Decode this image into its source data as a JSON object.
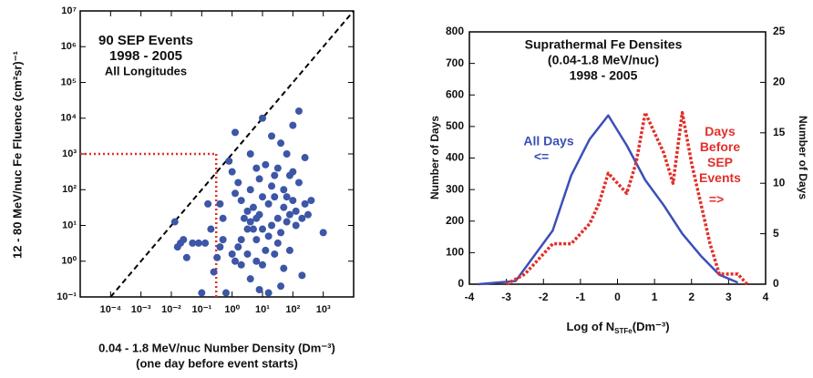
{
  "chart_data": [
    {
      "type": "scatter",
      "title": [
        "90 SEP Events",
        "1998 - 2005",
        "All Longitudes"
      ],
      "x_label": [
        "0.04 - 1.8 MeV/nuc Number Density (Dm⁻³)",
        "(one day before event starts)"
      ],
      "y_label": "12 - 80 MeV/nuc Fe Fluence (cm²sr)⁻¹",
      "xscale": "log",
      "yscale": "log",
      "xlim": [
        1e-05,
        10000
      ],
      "ylim": [
        0.1,
        10000000
      ],
      "xticks": [
        {
          "value": 0.0001,
          "label": "10⁻⁴"
        },
        {
          "value": 0.001,
          "label": "10⁻³"
        },
        {
          "value": 0.01,
          "label": "10⁻²"
        },
        {
          "value": 0.1,
          "label": "10⁻¹"
        },
        {
          "value": 1,
          "label": "10⁰"
        },
        {
          "value": 10,
          "label": "10¹"
        },
        {
          "value": 100,
          "label": "10²"
        },
        {
          "value": 1000,
          "label": "10³"
        }
      ],
      "yticks": [
        {
          "value": 0.1,
          "label": "10⁻¹"
        },
        {
          "value": 1,
          "label": "10⁰"
        },
        {
          "value": 10,
          "label": "10¹"
        },
        {
          "value": 100,
          "label": "10²"
        },
        {
          "value": 1000,
          "label": "10³"
        },
        {
          "value": 10000,
          "label": "10⁴"
        },
        {
          "value": 100000,
          "label": "10⁵"
        },
        {
          "value": 1000000,
          "label": "10⁶"
        },
        {
          "value": 10000000,
          "label": "10⁷"
        }
      ],
      "color": "#3d56a6",
      "x": [
        0.013,
        0.016,
        0.02,
        0.025,
        0.032,
        0.05,
        0.079,
        0.1,
        0.13,
        0.2,
        0.25,
        0.32,
        0.4,
        0.4,
        0.5,
        0.63,
        0.79,
        1,
        1.26,
        1,
        1.26,
        1.26,
        1.58,
        2,
        2,
        2.5,
        3.2,
        3.2,
        4,
        4,
        5,
        5,
        6.3,
        6.3,
        6.3,
        7.9,
        7.9,
        10,
        10,
        10,
        12.6,
        12.6,
        15.8,
        15.8,
        20,
        20,
        25,
        25,
        32,
        32,
        40,
        40,
        40,
        50,
        50,
        63,
        63,
        79,
        79,
        100,
        100,
        126,
        126,
        158,
        158,
        200,
        200,
        250,
        316,
        400,
        1000,
        0.16,
        4,
        15.8,
        32,
        2,
        50,
        7.9,
        100,
        0.5,
        3.2,
        20,
        63,
        10,
        1.58,
        250,
        25,
        6.3,
        79,
        4
      ],
      "values": [
        12.6,
        2.5,
        3.2,
        4,
        1.26,
        3.2,
        3.2,
        0.13,
        3.2,
        7.9,
        0.5,
        1.26,
        2.5,
        40,
        4,
        0.13,
        630,
        316,
        4000,
        1.58,
        1,
        79,
        158,
        4,
        0.79,
        15.8,
        25,
        1.58,
        0.32,
        100,
        7.9,
        32,
        4,
        15.8,
        1,
        200,
        20,
        0.79,
        7.9,
        10000,
        2,
        500,
        40,
        5,
        10,
        3160,
        63,
        1.58,
        400,
        15.8,
        2000,
        6.3,
        0.2,
        100,
        32,
        12.6,
        1000,
        250,
        2,
        50,
        6300,
        10,
        25,
        158,
        15800,
        15.8,
        0.4,
        40,
        20,
        50,
        6.3,
        40,
        1000,
        0.13,
        3.2,
        50,
        0.63,
        0.16,
        316,
        15.8,
        7.9,
        126,
        63,
        63,
        2.5,
        790,
        250,
        400,
        20,
        12.6
      ],
      "reference_line": {
        "x": [
          0.0001,
          10000
        ],
        "values": [
          0.1,
          10000000
        ],
        "color": "#000000"
      },
      "threshold": {
        "x": 0.3,
        "value": 1000,
        "color": "#e0302a"
      }
    },
    {
      "type": "line",
      "title": [
        "Suprathermal Fe Densites",
        "(0.04-1.8 MeV/nuc)",
        "1998 - 2005"
      ],
      "x_label": "Log of N",
      "x_label_sub": "STFe",
      "x_label_unit": "(Dm⁻³)",
      "y_label": "Number of Days",
      "y2_label": "Number of Days",
      "xlim": [
        -4,
        4
      ],
      "xticks": [
        -4,
        -3,
        -2,
        -1,
        0,
        1,
        2,
        3,
        4
      ],
      "ylim": [
        0,
        800
      ],
      "yticks": [
        0,
        100,
        200,
        300,
        400,
        500,
        600,
        700,
        800
      ],
      "y2lim": [
        0,
        25
      ],
      "y2ticks": [
        0,
        5,
        10,
        15,
        20,
        25
      ],
      "series": [
        {
          "name": "All Days",
          "arrow": "<=",
          "color": "#3b4fb8",
          "dashed": false,
          "x": [
            -3.75,
            -2.75,
            -1.75,
            -1.25,
            -0.75,
            -0.25,
            0.25,
            0.75,
            1.25,
            1.75,
            2.25,
            2.75,
            3.25
          ],
          "values": [
            0,
            10,
            170,
            345,
            460,
            535,
            440,
            330,
            250,
            160,
            90,
            30,
            5
          ]
        },
        {
          "name": "Days Before SEP Events",
          "arrow": "=>",
          "color": "#e0302a",
          "dashed": true,
          "axis": "y2",
          "x": [
            -3,
            -2.5,
            -2,
            -1.75,
            -1.25,
            -1,
            -0.75,
            -0.5,
            -0.25,
            0,
            0.25,
            0.5,
            0.75,
            1,
            1.25,
            1.5,
            1.75,
            2,
            2.25,
            2.5,
            2.75,
            3,
            3.25,
            3.5
          ],
          "values": [
            0,
            1,
            3,
            4,
            4,
            5,
            6,
            8,
            11,
            10,
            9,
            12,
            17,
            15,
            13,
            10,
            17,
            12,
            8,
            4,
            1,
            1,
            1,
            0
          ]
        }
      ]
    }
  ]
}
